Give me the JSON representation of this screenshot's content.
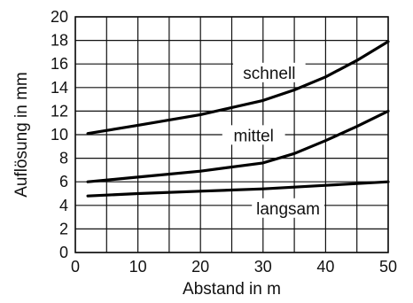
{
  "chart_data": {
    "type": "line",
    "xlabel": "Abstand in m",
    "ylabel": "Auflösung in mm",
    "xlim": [
      0,
      50
    ],
    "ylim": [
      0,
      20
    ],
    "xticks": [
      0,
      10,
      20,
      30,
      40,
      50
    ],
    "yticks": [
      0,
      2,
      4,
      6,
      8,
      10,
      12,
      14,
      16,
      18,
      20
    ],
    "grid": true,
    "series": [
      {
        "name": "schnell",
        "x": [
          2,
          10,
          20,
          30,
          35,
          40,
          45,
          50
        ],
        "y": [
          10.1,
          10.8,
          11.7,
          12.9,
          13.8,
          14.9,
          16.3,
          17.9
        ]
      },
      {
        "name": "mittel",
        "x": [
          2,
          10,
          20,
          30,
          35,
          40,
          45,
          50
        ],
        "y": [
          6.0,
          6.4,
          6.9,
          7.6,
          8.4,
          9.5,
          10.7,
          12.0
        ]
      },
      {
        "name": "langsam",
        "x": [
          2,
          10,
          20,
          30,
          40,
          50
        ],
        "y": [
          4.8,
          5.0,
          5.2,
          5.4,
          5.7,
          6.0
        ]
      }
    ]
  }
}
